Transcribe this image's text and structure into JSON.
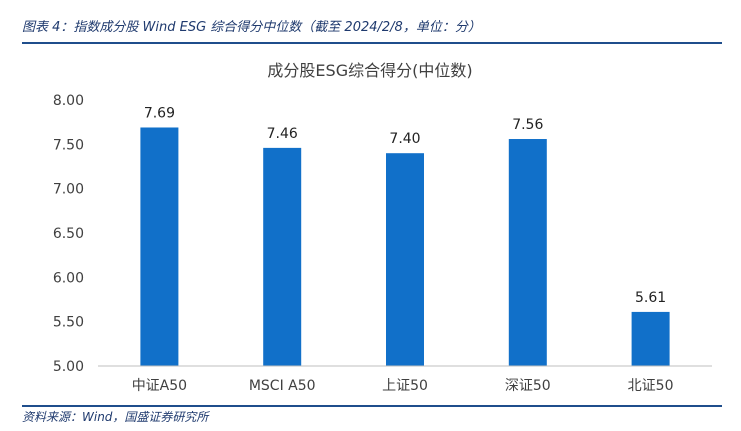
{
  "figure": {
    "caption": "图表 4：指数成分股 Wind ESG 综合得分中位数（截至 2024/2/8，单位：分）",
    "source": "资料来源：Wind，国盛证券研究所"
  },
  "chart_data": {
    "type": "bar",
    "title": "成分股ESG综合得分(中位数)",
    "xlabel": "",
    "ylabel": "",
    "categories": [
      "中证A50",
      "MSCI A50",
      "上证50",
      "深证50",
      "北证50"
    ],
    "values": [
      7.69,
      7.46,
      7.4,
      7.56,
      5.61
    ],
    "data_labels": [
      "7.69",
      "7.46",
      "7.40",
      "7.56",
      "5.61"
    ],
    "ylim": [
      5.0,
      8.0
    ],
    "yticks": [
      "5.00",
      "5.50",
      "6.00",
      "6.50",
      "7.00",
      "7.50",
      "8.00"
    ],
    "grid": false,
    "legend": "none",
    "bar_color": "#1170c9"
  }
}
